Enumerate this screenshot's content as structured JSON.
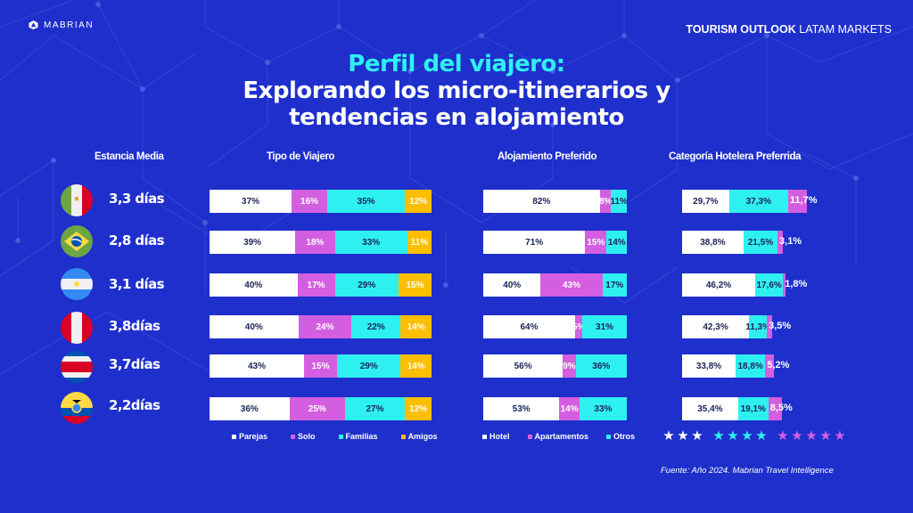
{
  "header": {
    "brand": "MABRIAN",
    "report_bold": "TOURISM OUTLOOK",
    "report_light": "LATAM MARKETS"
  },
  "title": {
    "line1": "Perfil del viajero:",
    "line2": "Explorando los micro-itinerarios y",
    "line3": "tendencias en alojamiento"
  },
  "columns": {
    "stay": "Estancia Media",
    "traveler": "Tipo de Viajero",
    "lodging": "Alojamiento Preferido",
    "hotel_category": "Categoría  Hotelera Preferrida"
  },
  "colors": {
    "background": "#1e2fcc",
    "white": "#ffffff",
    "magenta": "#d35fe0",
    "cyan": "#2ff0f0",
    "yellow": "#ffbf00"
  },
  "chart_data": [
    {
      "type": "table",
      "title": "Estancia Media",
      "categories": [
        "Mexico",
        "Brazil",
        "Argentina",
        "Peru",
        "Costa Rica",
        "Ecuador"
      ],
      "flags": [
        "mexico-flag-icon",
        "brazil-flag-icon",
        "argentina-flag-icon",
        "peru-flag-icon",
        "costa-rica-flag-icon",
        "ecuador-flag-icon"
      ],
      "values": [
        3.3,
        2.8,
        3.1,
        3.8,
        3.7,
        2.2
      ],
      "labels": [
        "3,3 días",
        "2,8 días",
        "3,1 días",
        "3,8días",
        "3,7días",
        "2,2días"
      ]
    },
    {
      "type": "bar",
      "stacked": true,
      "orientation": "horizontal",
      "title": "Tipo de Viajero",
      "categories": [
        "Mexico",
        "Brazil",
        "Argentina",
        "Peru",
        "Costa Rica",
        "Ecuador"
      ],
      "series": [
        {
          "name": "Parejas",
          "color": "#ffffff",
          "values": [
            37,
            39,
            40,
            40,
            43,
            36
          ],
          "labels": [
            "37%",
            "39%",
            "40%",
            "40%",
            "43%",
            "36%"
          ]
        },
        {
          "name": "Solo",
          "color": "#d35fe0",
          "values": [
            16,
            18,
            17,
            24,
            15,
            25
          ],
          "labels": [
            "16%",
            "18%",
            "17%",
            "24%",
            "15%",
            "25%"
          ]
        },
        {
          "name": "Familias",
          "color": "#2ff0f0",
          "values": [
            35,
            33,
            29,
            22,
            29,
            27
          ],
          "labels": [
            "35%",
            "33%",
            "29%",
            "22%",
            "29%",
            "27%"
          ]
        },
        {
          "name": "Amigos",
          "color": "#ffbf00",
          "values": [
            12,
            11,
            15,
            14,
            14,
            12
          ],
          "labels": [
            "12%",
            "11%",
            "15%",
            "14%",
            "14%",
            "12%"
          ]
        }
      ],
      "legend": "bottom"
    },
    {
      "type": "bar",
      "stacked": true,
      "orientation": "horizontal",
      "title": "Alojamiento Preferido",
      "categories": [
        "Mexico",
        "Brazil",
        "Argentina",
        "Peru",
        "Costa Rica",
        "Ecuador"
      ],
      "series": [
        {
          "name": "Hotel",
          "color": "#ffffff",
          "values": [
            82,
            71,
            40,
            64,
            56,
            53
          ],
          "labels": [
            "82%",
            "71%",
            "40%",
            "64%",
            "56%",
            "53%"
          ]
        },
        {
          "name": "Apartamentos",
          "color": "#d35fe0",
          "values": [
            8,
            15,
            43,
            5,
            9,
            14
          ],
          "labels": [
            "8%",
            "15%",
            "43%",
            "5%",
            "9%",
            "14%"
          ]
        },
        {
          "name": "Otros",
          "color": "#2ff0f0",
          "values": [
            11,
            14,
            17,
            31,
            36,
            33
          ],
          "labels": [
            "11%",
            "14%",
            "17%",
            "31%",
            "36%",
            "33%"
          ]
        }
      ],
      "legend": "bottom"
    },
    {
      "type": "bar",
      "stacked": true,
      "orientation": "horizontal",
      "title": "Categoría  Hotelera Preferrida",
      "categories": [
        "Mexico",
        "Brazil",
        "Argentina",
        "Peru",
        "Costa Rica",
        "Ecuador"
      ],
      "series": [
        {
          "name": "3 estrellas",
          "stars": 3,
          "color": "#ffffff",
          "values": [
            29.7,
            38.8,
            46.2,
            42.3,
            33.8,
            35.4
          ],
          "labels": [
            "29,7%",
            "38,8%",
            "46,2%",
            "42,3%",
            "33,8%",
            "35,4%"
          ]
        },
        {
          "name": "4 estrellas",
          "stars": 4,
          "color": "#2ff0f0",
          "values": [
            37.3,
            21.5,
            17.6,
            11.3,
            18.8,
            19.1
          ],
          "labels": [
            "37,3%",
            "21,5%",
            "17,6%",
            "11,3%",
            "18,8%",
            "19,1%"
          ]
        },
        {
          "name": "5 estrellas",
          "stars": 5,
          "color": "#d35fe0",
          "values": [
            11.7,
            3.1,
            1.8,
            3.5,
            5.2,
            8.5
          ],
          "labels": [
            "11,7%",
            "3,1%",
            "1,8%",
            "3,5%",
            "5,2%",
            "8,5%"
          ]
        }
      ],
      "legend": "bottom (stars)"
    }
  ],
  "source": "Fuente: Año 2024. Mabrian Travel Intelligence"
}
